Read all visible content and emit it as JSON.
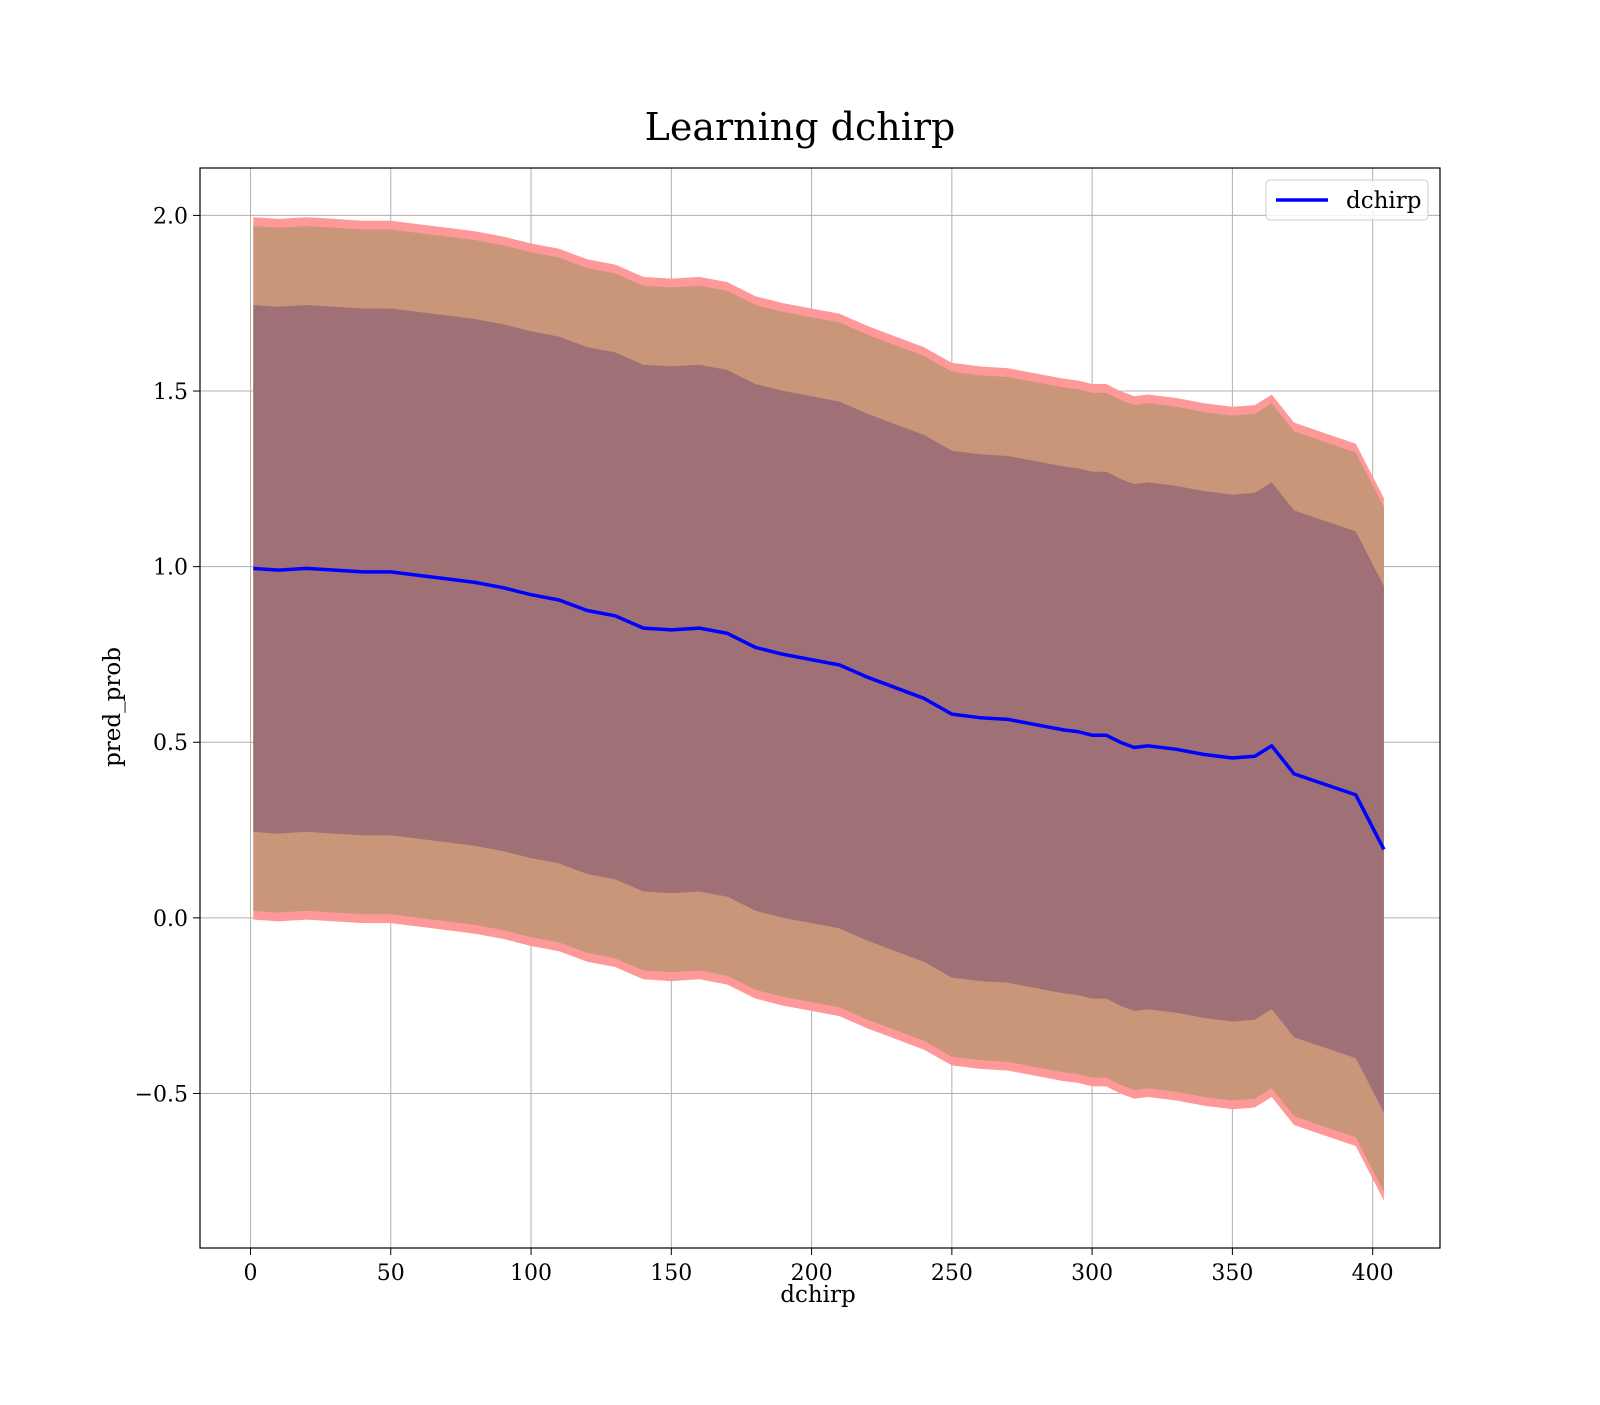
{
  "chart_data": {
    "type": "line",
    "title": "Learning dchirp",
    "xlabel": "dchirp",
    "ylabel": "pred_prob",
    "xlim": [
      -18,
      424
    ],
    "ylim": [
      -0.94,
      2.135
    ],
    "xticks": [
      0,
      50,
      100,
      150,
      200,
      250,
      300,
      350,
      400
    ],
    "xtick_labels": [
      "0",
      "50",
      "100",
      "150",
      "200",
      "250",
      "300",
      "350",
      "400"
    ],
    "yticks": [
      -0.5,
      0.0,
      0.5,
      1.0,
      1.5,
      2.0
    ],
    "ytick_labels": [
      "−0.5",
      "0.0",
      "0.5",
      "1.0",
      "1.5",
      "2.0"
    ],
    "grid": true,
    "legend": {
      "position": "top-right",
      "entries": [
        {
          "label": "dchirp",
          "color": "#0000ff"
        }
      ]
    },
    "colors": {
      "line": "#0000ff",
      "outer_band": "#ff9999",
      "middle_band": "#c9967a",
      "inner_band": "#a07077"
    },
    "x": [
      1,
      10,
      20,
      30,
      40,
      50,
      60,
      70,
      80,
      90,
      100,
      110,
      120,
      130,
      140,
      150,
      160,
      170,
      180,
      190,
      200,
      210,
      220,
      230,
      240,
      250,
      260,
      270,
      280,
      290,
      295,
      300,
      305,
      310,
      315,
      320,
      330,
      340,
      350,
      358,
      364,
      372,
      394,
      404
    ],
    "series": [
      {
        "name": "dchirp",
        "values": [
          0.995,
          0.99,
          0.995,
          0.99,
          0.985,
          0.985,
          0.975,
          0.965,
          0.955,
          0.94,
          0.92,
          0.905,
          0.875,
          0.86,
          0.825,
          0.82,
          0.825,
          0.81,
          0.77,
          0.75,
          0.735,
          0.72,
          0.685,
          0.655,
          0.625,
          0.58,
          0.57,
          0.565,
          0.55,
          0.535,
          0.53,
          0.52,
          0.52,
          0.5,
          0.485,
          0.49,
          0.48,
          0.465,
          0.455,
          0.46,
          0.49,
          0.41,
          0.35,
          0.195
        ]
      }
    ],
    "bands": [
      {
        "name": "outer",
        "upper": [
          1.995,
          1.99,
          1.995,
          1.99,
          1.985,
          1.985,
          1.975,
          1.965,
          1.955,
          1.94,
          1.92,
          1.905,
          1.875,
          1.86,
          1.825,
          1.82,
          1.825,
          1.81,
          1.77,
          1.75,
          1.735,
          1.72,
          1.685,
          1.655,
          1.625,
          1.58,
          1.57,
          1.565,
          1.55,
          1.535,
          1.53,
          1.52,
          1.52,
          1.5,
          1.485,
          1.49,
          1.48,
          1.465,
          1.455,
          1.46,
          1.49,
          1.41,
          1.35,
          1.195
        ],
        "lower": [
          -0.005,
          -0.01,
          -0.005,
          -0.01,
          -0.015,
          -0.015,
          -0.025,
          -0.035,
          -0.045,
          -0.06,
          -0.08,
          -0.095,
          -0.125,
          -0.14,
          -0.175,
          -0.18,
          -0.175,
          -0.19,
          -0.23,
          -0.25,
          -0.265,
          -0.28,
          -0.315,
          -0.345,
          -0.375,
          -0.42,
          -0.43,
          -0.435,
          -0.45,
          -0.465,
          -0.47,
          -0.48,
          -0.48,
          -0.5,
          -0.515,
          -0.51,
          -0.52,
          -0.535,
          -0.545,
          -0.54,
          -0.51,
          -0.59,
          -0.65,
          -0.805
        ]
      },
      {
        "name": "middle",
        "upper": [
          1.97,
          1.965,
          1.97,
          1.965,
          1.96,
          1.96,
          1.95,
          1.94,
          1.93,
          1.915,
          1.895,
          1.88,
          1.85,
          1.835,
          1.8,
          1.795,
          1.8,
          1.785,
          1.745,
          1.725,
          1.71,
          1.695,
          1.66,
          1.63,
          1.6,
          1.555,
          1.545,
          1.54,
          1.525,
          1.51,
          1.505,
          1.495,
          1.495,
          1.475,
          1.46,
          1.465,
          1.455,
          1.44,
          1.43,
          1.435,
          1.465,
          1.385,
          1.325,
          1.17
        ],
        "lower": [
          0.02,
          0.015,
          0.02,
          0.015,
          0.01,
          0.01,
          0.0,
          -0.01,
          -0.02,
          -0.035,
          -0.055,
          -0.07,
          -0.1,
          -0.115,
          -0.15,
          -0.155,
          -0.15,
          -0.165,
          -0.205,
          -0.225,
          -0.24,
          -0.255,
          -0.29,
          -0.32,
          -0.35,
          -0.395,
          -0.405,
          -0.41,
          -0.425,
          -0.44,
          -0.445,
          -0.455,
          -0.455,
          -0.475,
          -0.49,
          -0.485,
          -0.495,
          -0.51,
          -0.52,
          -0.515,
          -0.485,
          -0.565,
          -0.625,
          -0.78
        ]
      },
      {
        "name": "inner",
        "upper": [
          1.745,
          1.74,
          1.745,
          1.74,
          1.735,
          1.735,
          1.725,
          1.715,
          1.705,
          1.69,
          1.67,
          1.655,
          1.625,
          1.61,
          1.575,
          1.57,
          1.575,
          1.56,
          1.52,
          1.5,
          1.485,
          1.47,
          1.435,
          1.405,
          1.375,
          1.33,
          1.32,
          1.315,
          1.3,
          1.285,
          1.28,
          1.27,
          1.27,
          1.25,
          1.235,
          1.24,
          1.23,
          1.215,
          1.205,
          1.21,
          1.24,
          1.16,
          1.1,
          0.945
        ],
        "lower": [
          0.245,
          0.24,
          0.245,
          0.24,
          0.235,
          0.235,
          0.225,
          0.215,
          0.205,
          0.19,
          0.17,
          0.155,
          0.125,
          0.11,
          0.075,
          0.07,
          0.075,
          0.06,
          0.02,
          0.0,
          -0.015,
          -0.03,
          -0.065,
          -0.095,
          -0.125,
          -0.17,
          -0.18,
          -0.185,
          -0.2,
          -0.215,
          -0.22,
          -0.23,
          -0.23,
          -0.25,
          -0.265,
          -0.26,
          -0.27,
          -0.285,
          -0.295,
          -0.29,
          -0.26,
          -0.34,
          -0.4,
          -0.555
        ]
      }
    ]
  }
}
